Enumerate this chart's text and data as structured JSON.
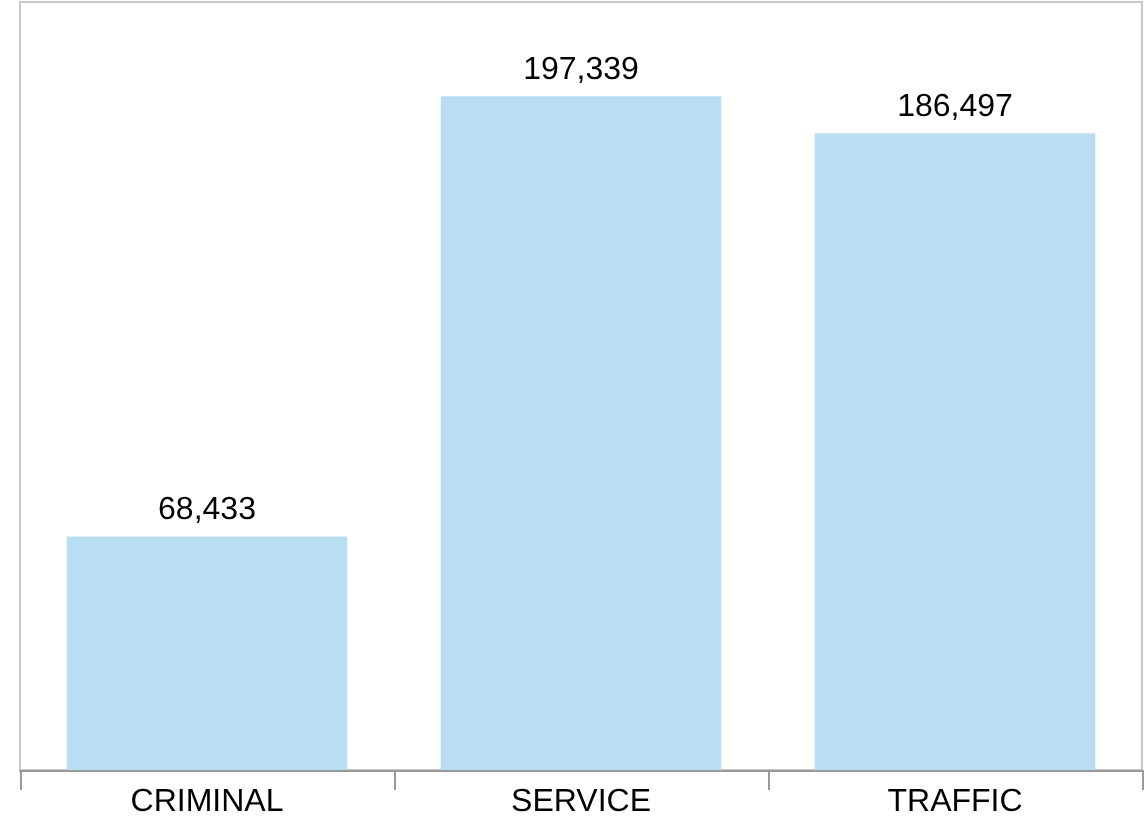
{
  "chart_data": {
    "type": "bar",
    "categories": [
      "CRIMINAL",
      "SERVICE",
      "TRAFFIC"
    ],
    "values": [
      68433,
      197339,
      186497
    ],
    "value_labels": [
      "68,433",
      "197,339",
      "186,497"
    ],
    "color": "#b9ddf1"
  }
}
